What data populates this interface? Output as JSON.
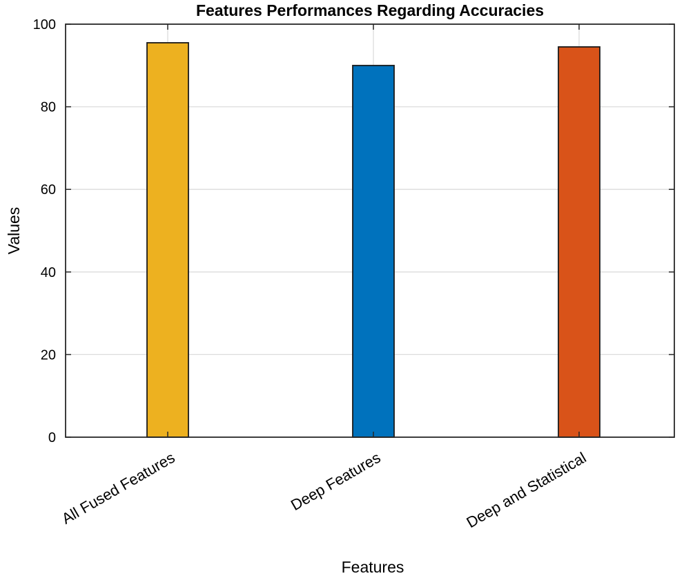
{
  "chart_data": {
    "type": "bar",
    "title": "Features Performances Regarding Accuracies",
    "xlabel": "Features",
    "ylabel": "Values",
    "categories": [
      "All Fused Features",
      "Deep Features",
      "Deep and Statistical"
    ],
    "values": [
      95.5,
      90,
      94.5
    ],
    "colors": [
      "#EDB120",
      "#0072BD",
      "#D95319"
    ],
    "ylim": [
      0,
      100
    ],
    "yticks": [
      "0",
      "20",
      "40",
      "60",
      "80",
      "100"
    ],
    "grid": true,
    "legend": "none"
  }
}
